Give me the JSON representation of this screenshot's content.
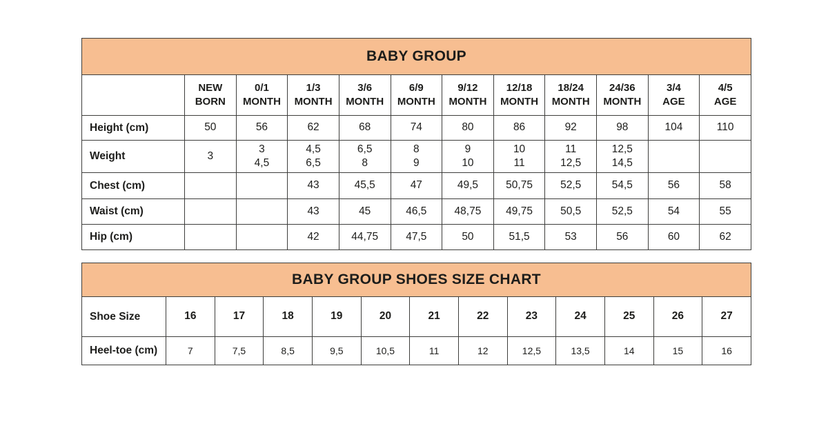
{
  "colors": {
    "header_bg": "#f7be91",
    "border": "#3d3d3b",
    "text": "#1d1d1b",
    "background": "#ffffff"
  },
  "chart_data": [
    {
      "type": "table",
      "title": "BABY GROUP",
      "columns": [
        "NEW\nBORN",
        "0/1\nMONTH",
        "1/3\nMONTH",
        "3/6\nMONTH",
        "6/9\nMONTH",
        "9/12\nMONTH",
        "12/18\nMONTH",
        "18/24\nMONTH",
        "24/36\nMONTH",
        "3/4\nAGE",
        "4/5\nAGE"
      ],
      "rows": [
        {
          "label": "Height (cm)",
          "values": [
            "50",
            "56",
            "62",
            "68",
            "74",
            "80",
            "86",
            "92",
            "98",
            "104",
            "110"
          ]
        },
        {
          "label": "Weight",
          "values": [
            "3",
            "3\n4,5",
            "4,5\n6,5",
            "6,5\n8",
            "8\n9",
            "9\n10",
            "10\n11",
            "11\n12,5",
            "12,5\n14,5",
            "",
            ""
          ]
        },
        {
          "label": "Chest (cm)",
          "values": [
            "",
            "",
            "43",
            "45,5",
            "47",
            "49,5",
            "50,75",
            "52,5",
            "54,5",
            "56",
            "58"
          ]
        },
        {
          "label": "Waist (cm)",
          "values": [
            "",
            "",
            "43",
            "45",
            "46,5",
            "48,75",
            "49,75",
            "50,5",
            "52,5",
            "54",
            "55"
          ]
        },
        {
          "label": "Hip (cm)",
          "values": [
            "",
            "",
            "42",
            "44,75",
            "47,5",
            "50",
            "51,5",
            "53",
            "56",
            "60",
            "62"
          ]
        }
      ]
    },
    {
      "type": "table",
      "title": "BABY GROUP SHOES SIZE CHART",
      "rows": [
        {
          "label": "Shoe Size",
          "values": [
            "16",
            "17",
            "18",
            "19",
            "20",
            "21",
            "22",
            "23",
            "24",
            "25",
            "26",
            "27"
          ]
        },
        {
          "label": "Heel-toe (cm)",
          "values": [
            "7",
            "7,5",
            "8,5",
            "9,5",
            "10,5",
            "11",
            "12",
            "12,5",
            "13,5",
            "14",
            "15",
            "16"
          ]
        }
      ]
    }
  ]
}
